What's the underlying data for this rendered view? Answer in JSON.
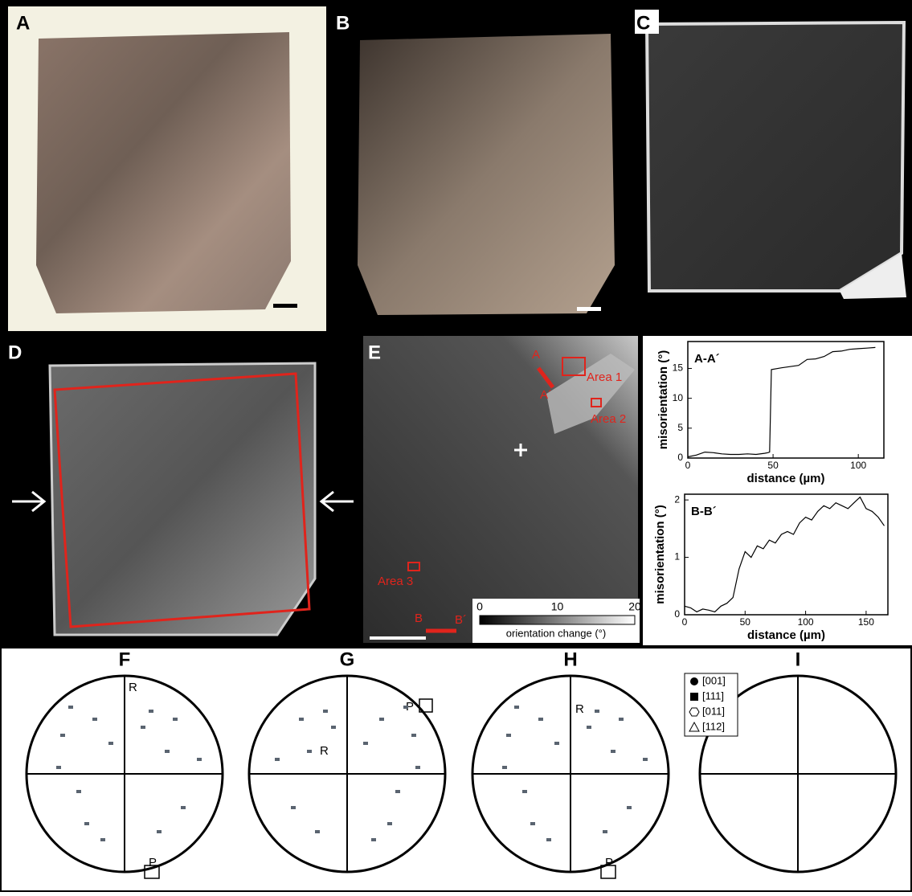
{
  "panels": {
    "a": "A",
    "b": "B",
    "c": "C",
    "d": "D",
    "e": "E",
    "f": "F",
    "g": "G",
    "h": "H",
    "i": "I"
  },
  "map_labels": {
    "a": "A",
    "a_prime": "A´",
    "b": "B",
    "b_prime": "B´",
    "area1": "Area 1",
    "area2": "Area 2",
    "area3": "Area 3"
  },
  "colorbar": {
    "label": "orientation change (°)",
    "lim": [
      0,
      20
    ],
    "ticks": [
      0,
      10,
      20
    ]
  },
  "chart_data": [
    {
      "type": "line",
      "title": "A-A´",
      "x_label": "distance (µm)",
      "y_label": "misorientation (°)",
      "color": "#000000",
      "x": [
        0,
        5,
        10,
        15,
        20,
        25,
        30,
        35,
        40,
        45,
        47,
        48,
        49,
        55,
        60,
        65,
        70,
        75,
        80,
        85,
        90,
        95,
        100,
        105,
        110
      ],
      "values": [
        0.2,
        0.5,
        1.0,
        0.9,
        0.7,
        0.6,
        0.6,
        0.7,
        0.6,
        0.8,
        0.9,
        1.0,
        14.8,
        15.1,
        15.3,
        15.5,
        16.5,
        16.6,
        17.0,
        17.8,
        17.9,
        18.2,
        18.3,
        18.4,
        18.5
      ],
      "xlim": [
        0,
        115
      ],
      "ylim": [
        0,
        19.5
      ],
      "xticks": [
        0,
        50,
        100
      ],
      "yticks": [
        0,
        5,
        10,
        15
      ]
    },
    {
      "type": "line",
      "title": "B-B´",
      "x_label": "distance (µm)",
      "y_label": "misorientation (°)",
      "color": "#000000",
      "x": [
        0,
        5,
        10,
        15,
        20,
        25,
        30,
        35,
        40,
        45,
        50,
        55,
        60,
        65,
        70,
        75,
        80,
        85,
        90,
        95,
        100,
        105,
        110,
        115,
        120,
        125,
        130,
        135,
        140,
        145,
        150,
        155,
        160,
        165
      ],
      "values": [
        0.15,
        0.12,
        0.05,
        0.1,
        0.08,
        0.05,
        0.15,
        0.2,
        0.3,
        0.8,
        1.1,
        1.0,
        1.2,
        1.15,
        1.3,
        1.25,
        1.4,
        1.45,
        1.4,
        1.6,
        1.7,
        1.65,
        1.8,
        1.9,
        1.85,
        1.95,
        1.9,
        1.85,
        1.95,
        2.05,
        1.85,
        1.8,
        1.7,
        1.55
      ],
      "xlim": [
        0,
        168
      ],
      "ylim": [
        0,
        2.1
      ],
      "xticks": [
        0,
        50,
        100,
        150
      ],
      "yticks": [
        0,
        1,
        2
      ]
    }
  ],
  "stereonets": {
    "f": {
      "r": "R",
      "p": "P"
    },
    "g": {
      "r": "R",
      "p": "P"
    },
    "h": {
      "r": "R",
      "p": "P"
    },
    "i": {
      "legend": [
        "[001]",
        "[111]",
        "[011]",
        "[112]"
      ]
    }
  }
}
